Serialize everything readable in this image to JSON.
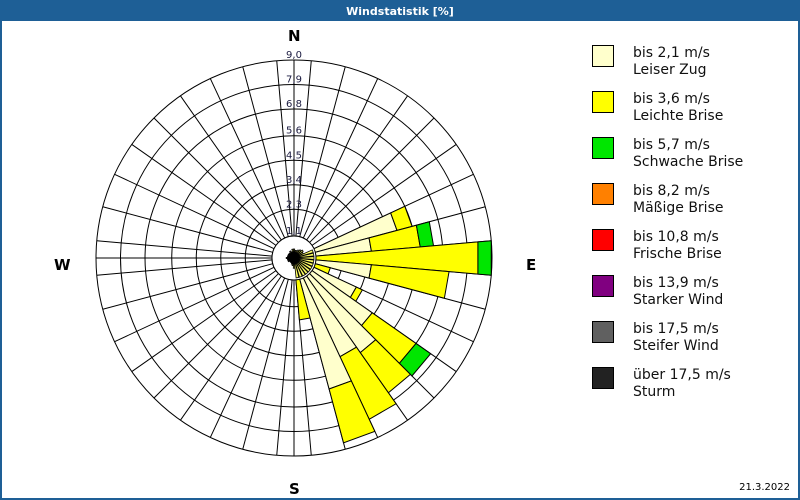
{
  "window": {
    "title": "Windstatistik [%]"
  },
  "compass": {
    "north": "N",
    "east": "E",
    "south": "S",
    "west": "W"
  },
  "date": "21.3.2022",
  "legend": [
    {
      "label1": "bis 2,1 m/s",
      "label2": "Leiser Zug",
      "color": "#ffffcc"
    },
    {
      "label1": "bis 3,6 m/s",
      "label2": "Leichte Brise",
      "color": "#ffff00"
    },
    {
      "label1": "bis 5,7 m/s",
      "label2": "Schwache Brise",
      "color": "#00e600"
    },
    {
      "label1": "bis 8,2 m/s",
      "label2": "Mäßige Brise",
      "color": "#ff8000"
    },
    {
      "label1": "bis 10,8 m/s",
      "label2": "Frische Brise",
      "color": "#ff0000"
    },
    {
      "label1": "bis 13,9 m/s",
      "label2": "Starker Wind",
      "color": "#800080"
    },
    {
      "label1": "bis 17,5 m/s",
      "label2": "Steifer Wind",
      "color": "#606060"
    },
    {
      "label1": "über 17,5 m/s",
      "label2": "Sturm",
      "color": "#222222"
    }
  ],
  "chart_data": {
    "type": "polar_stacked_bar",
    "title": "Windstatistik [%]",
    "radial_ticks": [
      "1,1",
      "2,3",
      "3,4",
      "4,5",
      "5,6",
      "6,8",
      "7,9",
      "9,0"
    ],
    "radial_tick_values": [
      1.1,
      2.3,
      3.4,
      4.5,
      5.6,
      6.8,
      7.9,
      9.0
    ],
    "rmax": 9.0,
    "sector_width_deg": 10,
    "directions_deg": [
      0,
      10,
      20,
      30,
      40,
      50,
      60,
      70,
      80,
      90,
      100,
      110,
      120,
      130,
      140,
      150,
      160,
      170,
      180,
      190,
      200,
      210,
      220,
      230,
      240,
      250,
      260,
      270,
      280,
      290,
      300,
      310,
      320,
      330,
      340,
      350
    ],
    "series": [
      {
        "name": "bis 2,1 m/s Leiser Zug",
        "color": "#ffffcc",
        "values": [
          0.4,
          0.3,
          0.3,
          0.4,
          0.5,
          0.6,
          0.5,
          4.9,
          3.6,
          0.5,
          3.6,
          0.6,
          3.2,
          4.4,
          5.3,
          5.0,
          6.2,
          0.6,
          0.5,
          0.3,
          0.3,
          0.2,
          0.2,
          0.2,
          0.3,
          0.3,
          0.3,
          0.3,
          0.3,
          0.3,
          0.3,
          0.3,
          0.3,
          0.4,
          0.3,
          0.4
        ]
      },
      {
        "name": "bis 3,6 m/s Leichte Brise",
        "color": "#ffff00",
        "values": [
          0.1,
          0.1,
          0.1,
          0.1,
          0.1,
          0.1,
          0.1,
          0.7,
          2.2,
          7.9,
          3.5,
          1.2,
          0.3,
          2.4,
          2.2,
          3.1,
          2.5,
          2.3,
          0.1,
          0.1,
          0.0,
          0.0,
          0.0,
          0.0,
          0.0,
          0.0,
          0.0,
          0.1,
          0.0,
          0.0,
          0.0,
          0.0,
          0.0,
          0.0,
          0.0,
          0.1
        ]
      },
      {
        "name": "bis 5,7 m/s Schwache Brise",
        "color": "#00e600",
        "values": [
          0,
          0,
          0,
          0,
          0,
          0,
          0,
          0,
          0.6,
          0.6,
          0,
          0,
          0,
          0.8,
          0,
          0,
          0,
          0,
          0,
          0,
          0,
          0,
          0,
          0,
          0,
          0,
          0,
          0,
          0,
          0,
          0,
          0,
          0,
          0,
          0,
          0
        ]
      },
      {
        "name": "bis 8,2 m/s Mäßige Brise",
        "color": "#ff8000",
        "values": [
          0,
          0,
          0,
          0,
          0,
          0,
          0,
          0,
          0,
          0,
          0,
          0,
          0,
          0,
          0,
          0,
          0,
          0,
          0,
          0,
          0,
          0,
          0,
          0,
          0,
          0,
          0,
          0,
          0,
          0,
          0,
          0,
          0,
          0,
          0,
          0
        ]
      },
      {
        "name": "bis 10,8 m/s Frische Brise",
        "color": "#ff0000",
        "values": [
          0,
          0,
          0,
          0,
          0,
          0,
          0,
          0,
          0,
          0,
          0,
          0,
          0,
          0,
          0,
          0,
          0,
          0,
          0,
          0,
          0,
          0,
          0,
          0,
          0,
          0,
          0,
          0,
          0,
          0,
          0,
          0,
          0,
          0,
          0,
          0
        ]
      },
      {
        "name": "bis 13,9 m/s Starker Wind",
        "color": "#800080",
        "values": [
          0,
          0,
          0,
          0,
          0,
          0,
          0,
          0,
          0,
          0,
          0,
          0,
          0,
          0,
          0,
          0,
          0,
          0,
          0,
          0,
          0,
          0,
          0,
          0,
          0,
          0,
          0,
          0,
          0,
          0,
          0,
          0,
          0,
          0,
          0,
          0
        ]
      },
      {
        "name": "bis 17,5 m/s Steifer Wind",
        "color": "#606060",
        "values": [
          0,
          0,
          0,
          0,
          0,
          0,
          0,
          0,
          0,
          0,
          0,
          0,
          0,
          0,
          0,
          0,
          0,
          0,
          0,
          0,
          0,
          0,
          0,
          0,
          0,
          0,
          0,
          0,
          0,
          0,
          0,
          0,
          0,
          0,
          0,
          0
        ]
      },
      {
        "name": "über 17,5 m/s Sturm",
        "color": "#222222",
        "values": [
          0,
          0,
          0,
          0,
          0,
          0,
          0,
          0,
          0,
          0,
          0,
          0,
          0,
          0,
          0,
          0,
          0,
          0,
          0,
          0,
          0,
          0,
          0,
          0,
          0,
          0,
          0,
          0,
          0,
          0,
          0,
          0,
          0,
          0,
          0,
          0
        ]
      }
    ],
    "legend_position": "right",
    "grid": true
  }
}
